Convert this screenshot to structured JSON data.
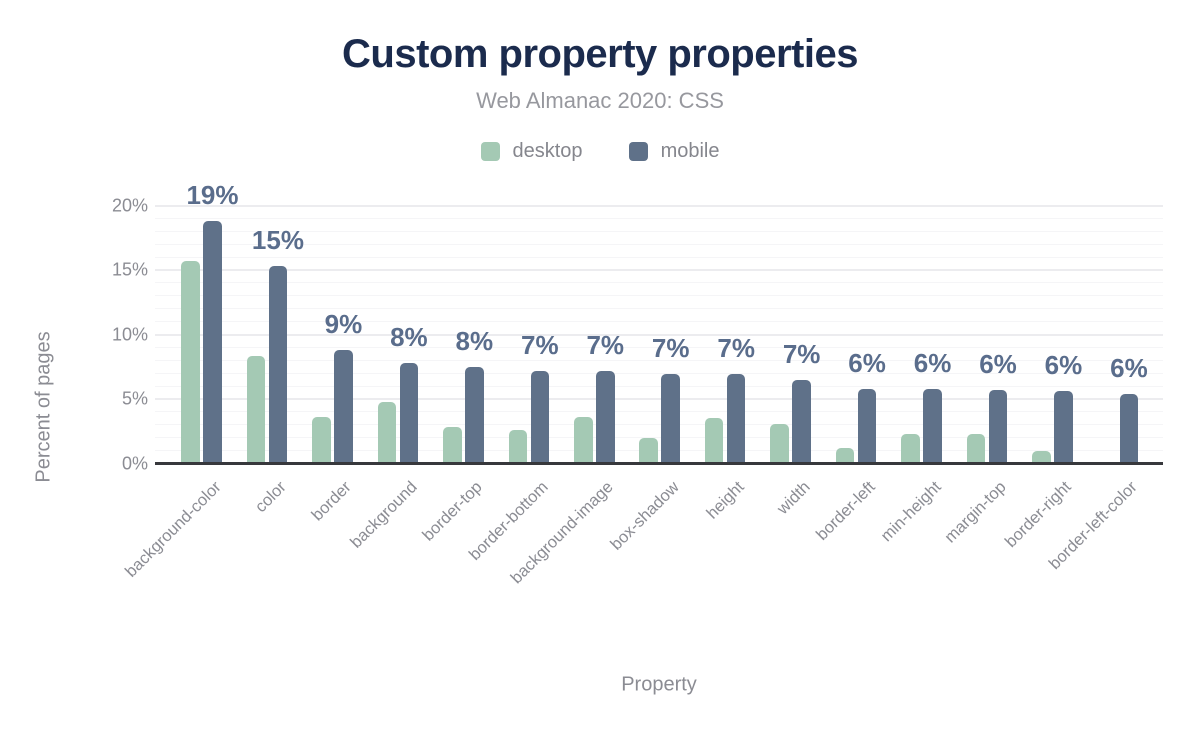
{
  "header": {
    "title": "Custom property properties",
    "subtitle": "Web Almanac 2020: CSS"
  },
  "chart_data": {
    "type": "bar",
    "title": "Custom property properties",
    "subtitle": "Web Almanac 2020: CSS",
    "xlabel": "Property",
    "ylabel": "Percent of pages",
    "ylim": [
      0,
      20
    ],
    "ytick_labels": [
      "0%",
      "5%",
      "10%",
      "15%",
      "20%"
    ],
    "ytick_values": [
      0,
      5,
      10,
      15,
      20
    ],
    "grid": {
      "major_step": 5,
      "minor_step": 1,
      "enabled": true
    },
    "legend_position": "top-center",
    "categories": [
      "background-color",
      "color",
      "border",
      "background",
      "border-top",
      "border-bottom",
      "background-image",
      "box-shadow",
      "height",
      "width",
      "border-left",
      "min-height",
      "margin-top",
      "border-right",
      "border-left-color"
    ],
    "series": [
      {
        "name": "desktop",
        "color": "#a4c9b4",
        "values": [
          15.7,
          8.3,
          3.6,
          4.8,
          2.8,
          2.6,
          3.6,
          2.0,
          3.5,
          3.1,
          1.2,
          2.3,
          2.3,
          1.0,
          0
        ]
      },
      {
        "name": "mobile",
        "color": "#5f7189",
        "values": [
          18.8,
          15.3,
          8.8,
          7.8,
          7.5,
          7.2,
          7.2,
          6.9,
          6.9,
          6.5,
          5.8,
          5.8,
          5.7,
          5.6,
          5.4
        ]
      }
    ],
    "bar_labels": [
      "19%",
      "15%",
      "9%",
      "8%",
      "8%",
      "7%",
      "7%",
      "7%",
      "7%",
      "7%",
      "6%",
      "6%",
      "6%",
      "6%",
      "6%"
    ],
    "bar_labels_series": "mobile"
  },
  "colors": {
    "title": "#1b2b4d",
    "subtitle": "#97989e",
    "axis_text": "#8b8c93",
    "bar_value_label": "#5a6d8c",
    "desktop": "#a4c9b4",
    "mobile": "#5f7189",
    "baseline": "#37383c",
    "grid_major": "#ececef",
    "grid_minor": "#f5f5f7",
    "background": "#ffffff"
  }
}
